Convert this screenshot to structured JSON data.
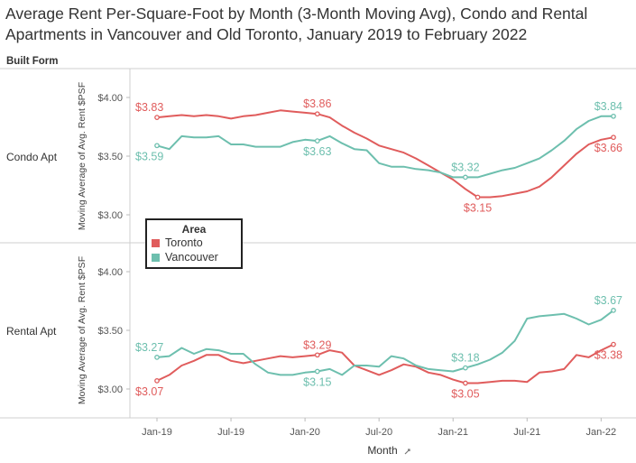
{
  "title_line1": "Average Rent Per-Square-Foot by Month (3-Month Moving Avg), Condo and Rental",
  "title_line2": "Apartments in Vancouver and Old Toronto, January 2019 to February 2022",
  "facet_header": "Built Form",
  "x_axis_title": "Month",
  "x_axis_title_icon": "sort-icon",
  "legend": {
    "title": "Area",
    "items": [
      {
        "label": "Toronto",
        "color": "#e05c5c"
      },
      {
        "label": "Vancouver",
        "color": "#6dbfae"
      }
    ]
  },
  "chart_data": {
    "type": "line",
    "x": [
      "Jan-19",
      "Feb-19",
      "Mar-19",
      "Apr-19",
      "May-19",
      "Jun-19",
      "Jul-19",
      "Aug-19",
      "Sep-19",
      "Oct-19",
      "Nov-19",
      "Dec-19",
      "Jan-20",
      "Feb-20",
      "Mar-20",
      "Apr-20",
      "May-20",
      "Jun-20",
      "Jul-20",
      "Aug-20",
      "Sep-20",
      "Oct-20",
      "Nov-20",
      "Dec-20",
      "Jan-21",
      "Feb-21",
      "Mar-21",
      "Apr-21",
      "May-21",
      "Jun-21",
      "Jul-21",
      "Aug-21",
      "Sep-21",
      "Oct-21",
      "Nov-21",
      "Dec-21",
      "Jan-22",
      "Feb-22"
    ],
    "x_tick_labels": [
      "Jan-19",
      "Jul-19",
      "Jan-20",
      "Jul-20",
      "Jan-21",
      "Jul-21",
      "Jan-22"
    ],
    "x_tick_indices": [
      0,
      6,
      12,
      18,
      24,
      30,
      36
    ],
    "panels": [
      {
        "row_label": "Condo Apt",
        "ylabel": "Moving Average of Avg. Rent $PSF",
        "ylim": [
          2.9,
          4.1
        ],
        "y_ticks": [
          3.0,
          3.5,
          4.0
        ],
        "y_tick_labels": [
          "$3.00",
          "$3.50",
          "$4.00"
        ],
        "series": [
          {
            "name": "Toronto",
            "color": "#e05c5c",
            "values": [
              3.83,
              3.84,
              3.85,
              3.84,
              3.85,
              3.84,
              3.82,
              3.84,
              3.85,
              3.87,
              3.89,
              3.88,
              3.87,
              3.86,
              3.83,
              3.76,
              3.7,
              3.65,
              3.59,
              3.56,
              3.53,
              3.48,
              3.42,
              3.36,
              3.3,
              3.22,
              3.15,
              3.15,
              3.16,
              3.18,
              3.2,
              3.24,
              3.32,
              3.42,
              3.52,
              3.6,
              3.64,
              3.66
            ],
            "annotations": [
              {
                "i": 0,
                "text": "$3.83"
              },
              {
                "i": 13,
                "text": "$3.86"
              },
              {
                "i": 26,
                "text": "$3.15"
              },
              {
                "i": 37,
                "text": "$3.66"
              }
            ]
          },
          {
            "name": "Vancouver",
            "color": "#6dbfae",
            "values": [
              3.59,
              3.56,
              3.67,
              3.66,
              3.66,
              3.67,
              3.6,
              3.6,
              3.58,
              3.58,
              3.58,
              3.62,
              3.64,
              3.63,
              3.67,
              3.61,
              3.56,
              3.55,
              3.44,
              3.41,
              3.41,
              3.39,
              3.38,
              3.36,
              3.32,
              3.32,
              3.32,
              3.35,
              3.38,
              3.4,
              3.44,
              3.48,
              3.55,
              3.63,
              3.73,
              3.8,
              3.84,
              3.84
            ],
            "annotations": [
              {
                "i": 0,
                "text": "$3.59"
              },
              {
                "i": 13,
                "text": "$3.63"
              },
              {
                "i": 25,
                "text": "$3.32"
              },
              {
                "i": 37,
                "text": "$3.84"
              }
            ]
          }
        ]
      },
      {
        "row_label": "Rental Apt",
        "ylabel": "Moving Average of Avg. Rent $PSF",
        "ylim": [
          2.9,
          4.1
        ],
        "y_ticks": [
          3.0,
          3.5,
          4.0
        ],
        "y_tick_labels": [
          "$3.00",
          "$3.50",
          "$4.00"
        ],
        "series": [
          {
            "name": "Toronto",
            "color": "#e05c5c",
            "values": [
              3.07,
              3.12,
              3.2,
              3.24,
              3.29,
              3.29,
              3.24,
              3.22,
              3.24,
              3.26,
              3.28,
              3.27,
              3.28,
              3.29,
              3.33,
              3.31,
              3.2,
              3.16,
              3.12,
              3.16,
              3.21,
              3.19,
              3.14,
              3.12,
              3.08,
              3.05,
              3.05,
              3.06,
              3.07,
              3.07,
              3.06,
              3.14,
              3.15,
              3.17,
              3.29,
              3.27,
              3.33,
              3.38
            ],
            "annotations": [
              {
                "i": 0,
                "text": "$3.07"
              },
              {
                "i": 13,
                "text": "$3.29"
              },
              {
                "i": 25,
                "text": "$3.05"
              },
              {
                "i": 37,
                "text": "$3.38"
              }
            ]
          },
          {
            "name": "Vancouver",
            "color": "#6dbfae",
            "values": [
              3.27,
              3.28,
              3.35,
              3.3,
              3.34,
              3.33,
              3.3,
              3.3,
              3.21,
              3.14,
              3.12,
              3.12,
              3.14,
              3.15,
              3.17,
              3.12,
              3.2,
              3.2,
              3.19,
              3.28,
              3.26,
              3.2,
              3.17,
              3.16,
              3.15,
              3.18,
              3.21,
              3.25,
              3.31,
              3.41,
              3.6,
              3.62,
              3.63,
              3.64,
              3.6,
              3.55,
              3.59,
              3.67
            ],
            "annotations": [
              {
                "i": 0,
                "text": "$3.27"
              },
              {
                "i": 13,
                "text": "$3.15"
              },
              {
                "i": 25,
                "text": "$3.18"
              },
              {
                "i": 37,
                "text": "$3.67"
              }
            ]
          }
        ]
      }
    ],
    "legend_position": "inside-left-middle",
    "grid": false
  }
}
